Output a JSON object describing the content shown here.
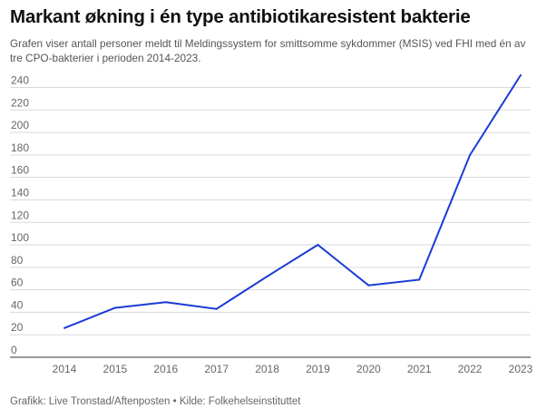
{
  "header": {
    "title": "Markant økning i én type antibiotikaresistent bakterie",
    "subtitle": "Grafen viser antall personer meldt til Meldingssystem for smittsomme sykdommer (MSIS) ved FHI med én av tre CPO-bakterier i perioden 2014-2023."
  },
  "footer": {
    "credit": "Grafikk: Live Tronstad/Aftenposten • Kilde: Folkehelseinstituttet"
  },
  "colors": {
    "line": "#1a3ad6",
    "grid": "#d9d9d9",
    "baseline": "#333333"
  },
  "chart_data": {
    "type": "line",
    "title": "Markant økning i én type antibiotikaresistent bakterie",
    "subtitle": "Grafen viser antall personer meldt til Meldingssystem for smittsomme sykdommer (MSIS) ved FHI med én av tre CPO-bakterier i perioden 2014-2023.",
    "xlabel": "",
    "ylabel": "",
    "categories": [
      "2014",
      "2015",
      "2016",
      "2017",
      "2018",
      "2019",
      "2020",
      "2021",
      "2022",
      "2023"
    ],
    "series": [
      {
        "values": [
          26,
          44,
          49,
          43,
          72,
          100,
          64,
          69,
          180,
          251
        ]
      }
    ],
    "ylim": [
      0,
      240
    ],
    "yticks": [
      0,
      20,
      40,
      60,
      80,
      100,
      120,
      140,
      160,
      180,
      200,
      220,
      240
    ],
    "grid": true,
    "legend": "none"
  }
}
